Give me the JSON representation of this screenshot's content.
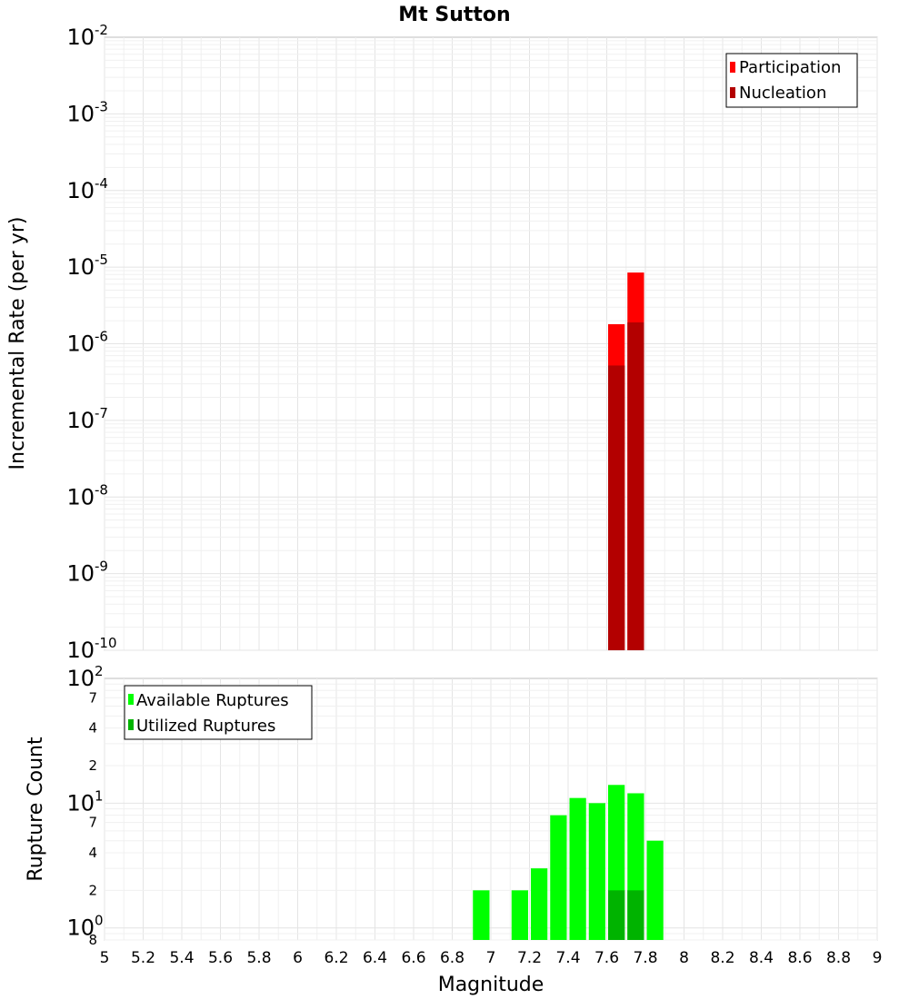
{
  "chart_data": [
    {
      "type": "bar",
      "title": "Mt Sutton",
      "xlabel": "",
      "ylabel": "Incremental Rate (per yr)",
      "yscale": "log",
      "ylim": [
        1e-10,
        0.01
      ],
      "xlim": [
        5,
        9
      ],
      "bar_width": 0.1,
      "y_ticks": [
        {
          "base": "10",
          "exp": "-10",
          "value": 1e-10
        },
        {
          "base": "10",
          "exp": "-9",
          "value": 1e-09
        },
        {
          "base": "10",
          "exp": "-8",
          "value": 1e-08
        },
        {
          "base": "10",
          "exp": "-7",
          "value": 1e-07
        },
        {
          "base": "10",
          "exp": "-6",
          "value": 1e-06
        },
        {
          "base": "10",
          "exp": "-5",
          "value": 1e-05
        },
        {
          "base": "10",
          "exp": "-4",
          "value": 0.0001
        },
        {
          "base": "10",
          "exp": "-3",
          "value": 0.001
        },
        {
          "base": "10",
          "exp": "-2",
          "value": 0.01
        }
      ],
      "legend": {
        "position": "top-right"
      },
      "series": [
        {
          "name": "Participation",
          "color": "#ff0000",
          "x": [
            7.65,
            7.75
          ],
          "values": [
            1.8e-06,
            8.5e-06
          ]
        },
        {
          "name": "Nucleation",
          "color": "#b30000",
          "x": [
            7.65,
            7.75
          ],
          "values": [
            5.2e-07,
            1.9e-06
          ]
        }
      ],
      "grid": true
    },
    {
      "type": "bar",
      "title": "",
      "xlabel": "Magnitude",
      "ylabel": "Rupture Count",
      "yscale": "log",
      "ylim": [
        0.8,
        100
      ],
      "xlim": [
        5,
        9
      ],
      "bar_width": 0.1,
      "x_tick_labels": [
        "5",
        "5.2",
        "5.4",
        "5.6",
        "5.8",
        "6",
        "6.2",
        "6.4",
        "6.6",
        "6.8",
        "7",
        "7.2",
        "7.4",
        "7.6",
        "7.8",
        "8",
        "8.2",
        "8.4",
        "8.6",
        "8.8",
        "9"
      ],
      "y_major_ticks": [
        {
          "base": "10",
          "exp": "0",
          "value": 1
        },
        {
          "base": "10",
          "exp": "1",
          "value": 10
        },
        {
          "base": "10",
          "exp": "2",
          "value": 100
        }
      ],
      "y_minor_ticks": [
        {
          "label": "8",
          "value": 0.8
        },
        {
          "label": "2",
          "value": 2
        },
        {
          "label": "4",
          "value": 4
        },
        {
          "label": "7",
          "value": 7
        },
        {
          "label": "2",
          "value": 20
        },
        {
          "label": "4",
          "value": 40
        },
        {
          "label": "7",
          "value": 70
        }
      ],
      "legend": {
        "position": "top-left"
      },
      "series": [
        {
          "name": "Available Ruptures",
          "color": "#00ff00",
          "x": [
            6.95,
            7.15,
            7.25,
            7.35,
            7.45,
            7.55,
            7.65,
            7.75,
            7.85
          ],
          "values": [
            2,
            2,
            3,
            8,
            11,
            10,
            14,
            12,
            5
          ]
        },
        {
          "name": "Utilized Ruptures",
          "color": "#00b300",
          "x": [
            7.65,
            7.75
          ],
          "values": [
            2,
            2
          ]
        }
      ],
      "grid": true
    }
  ]
}
